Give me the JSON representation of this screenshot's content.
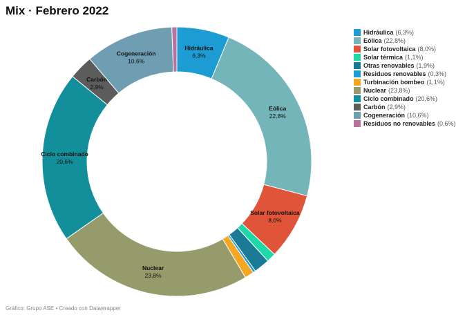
{
  "title": "Mix · Febrero 2022",
  "footer": "Gráfico: Grupo ASE • Creado con Datawrapper",
  "chart_data": {
    "type": "pie",
    "donut": true,
    "title": "Mix · Febrero 2022",
    "legend_position": "right",
    "slices": [
      {
        "name": "Hidráulica",
        "value": 6.3,
        "label": "6,3%",
        "color": "#1d9cd3",
        "show_label": true
      },
      {
        "name": "Eólica",
        "value": 22.8,
        "label": "22,8%",
        "color": "#74b5b9",
        "show_label": true
      },
      {
        "name": "Solar fotovoltaica",
        "value": 8.0,
        "label": "8,0%",
        "color": "#e0553a",
        "show_label": true
      },
      {
        "name": "Solar térmica",
        "value": 1.1,
        "label": "1,1%",
        "color": "#1fd8a8",
        "show_label": false
      },
      {
        "name": "Otras renovables",
        "value": 1.9,
        "label": "1,9%",
        "color": "#1b7a96",
        "show_label": false
      },
      {
        "name": "Residuos renovables",
        "value": 0.3,
        "label": "0,3%",
        "color": "#1a9cd4",
        "show_label": false
      },
      {
        "name": "Turbinación bombeo",
        "value": 1.1,
        "label": "1,1%",
        "color": "#f5a623",
        "show_label": false
      },
      {
        "name": "Nuclear",
        "value": 23.8,
        "label": "23,8%",
        "color": "#969b6b",
        "show_label": true
      },
      {
        "name": "Ciclo combinado",
        "value": 20.6,
        "label": "20,6%",
        "color": "#138f9b",
        "show_label": true
      },
      {
        "name": "Carbón",
        "value": 2.9,
        "label": "2,9%",
        "color": "#5c5c5c",
        "show_label": true
      },
      {
        "name": "Cogeneración",
        "value": 10.6,
        "label": "10,6%",
        "color": "#6f9db2",
        "show_label": true
      },
      {
        "name": "Residuos no renovables",
        "value": 0.6,
        "label": "0,6%",
        "color": "#b7739b",
        "show_label": false
      }
    ]
  }
}
